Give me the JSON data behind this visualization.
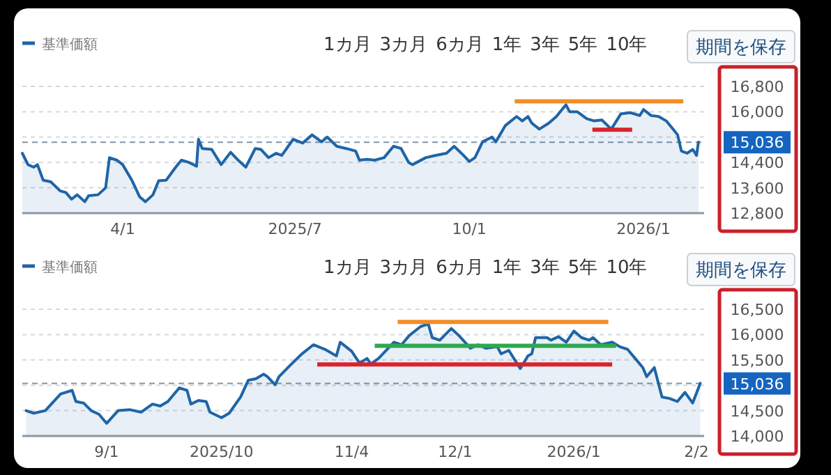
{
  "chart_data": [
    {
      "type": "area",
      "grid": "y",
      "legend": "top left",
      "xlim": [
        "2025-02-07",
        "2026-02-02"
      ],
      "ylim": [
        12800,
        16800
      ],
      "xticks": [
        {
          "value": "2025-04-01",
          "label": "4/1"
        },
        {
          "value": "2025-07-01",
          "label": "2025/7"
        },
        {
          "value": "2025-10-01",
          "label": "10/1"
        },
        {
          "value": "2026-01-01",
          "label": "2026/1"
        }
      ],
      "yticks": [
        {
          "value": 12800,
          "label": "12,800"
        },
        {
          "value": 13600,
          "label": "13,600"
        },
        {
          "value": 14400,
          "label": "14,400"
        },
        {
          "value": 15200,
          "label": null
        },
        {
          "value": 16000,
          "label": "16,000"
        },
        {
          "value": 16800,
          "label": "16,800"
        }
      ],
      "ref_lines": [
        {
          "axis": "y",
          "value": 15036,
          "label": "15,036",
          "line_style": "dashed"
        }
      ],
      "annotations": [
        "1カ月",
        "3カ月",
        "6カ月",
        "1年",
        "3年",
        "5年",
        "10年",
        "期間を保存"
      ],
      "series": [
        {
          "name": "基準価額",
          "type": "area",
          "color": "#1f65a6",
          "x": [
            "2025-02-07",
            "2025-02-10",
            "2025-02-13",
            "2025-02-15",
            "2025-02-18",
            "2025-02-22",
            "2025-02-27",
            "2025-03-02",
            "2025-03-05",
            "2025-03-08",
            "2025-03-12",
            "2025-03-14",
            "2025-03-19",
            "2025-03-23",
            "2025-03-25",
            "2025-03-29",
            "2025-04-01",
            "2025-04-06",
            "2025-04-10",
            "2025-04-13",
            "2025-04-17",
            "2025-04-20",
            "2025-04-24",
            "2025-04-29",
            "2025-05-02",
            "2025-05-06",
            "2025-05-10",
            "2025-05-11",
            "2025-05-13",
            "2025-05-18",
            "2025-05-23",
            "2025-05-28",
            "2025-06-01",
            "2025-06-05",
            "2025-06-10",
            "2025-06-13",
            "2025-06-17",
            "2025-06-21",
            "2025-06-24",
            "2025-06-30",
            "2025-07-05",
            "2025-07-10",
            "2025-07-15",
            "2025-07-18",
            "2025-07-23",
            "2025-07-28",
            "2025-08-02",
            "2025-08-04",
            "2025-08-08",
            "2025-08-12",
            "2025-08-17",
            "2025-08-22",
            "2025-08-26",
            "2025-08-30",
            "2025-09-01",
            "2025-09-08",
            "2025-09-13",
            "2025-09-19",
            "2025-09-23",
            "2025-09-28",
            "2025-10-01",
            "2025-10-04",
            "2025-10-08",
            "2025-10-13",
            "2025-10-15",
            "2025-10-20",
            "2025-10-26",
            "2025-10-29",
            "2025-11-01",
            "2025-11-03",
            "2025-11-07",
            "2025-11-12",
            "2025-11-16",
            "2025-11-21",
            "2025-11-23",
            "2025-11-27",
            "2025-12-02",
            "2025-12-06",
            "2025-12-10",
            "2025-12-15",
            "2025-12-20",
            "2025-12-25",
            "2025-12-30",
            "2026-01-01",
            "2026-01-05",
            "2026-01-09",
            "2026-01-13",
            "2026-01-17",
            "2026-01-19",
            "2026-01-21",
            "2026-01-24",
            "2026-01-27",
            "2026-01-29",
            "2026-01-30"
          ],
          "values": [
            14690,
            14330,
            14250,
            14330,
            13840,
            13790,
            13500,
            13450,
            13240,
            13380,
            13160,
            13350,
            13380,
            13600,
            14550,
            14470,
            14330,
            13820,
            13310,
            13160,
            13380,
            13820,
            13840,
            14250,
            14470,
            14400,
            14280,
            15130,
            14840,
            14810,
            14330,
            14720,
            14470,
            14250,
            14840,
            14810,
            14550,
            14690,
            14620,
            15130,
            15010,
            15270,
            15050,
            15200,
            14910,
            14840,
            14760,
            14470,
            14500,
            14470,
            14550,
            14910,
            14840,
            14400,
            14330,
            14550,
            14620,
            14690,
            14910,
            14620,
            14430,
            14550,
            15050,
            15200,
            15050,
            15560,
            15850,
            15710,
            15850,
            15640,
            15450,
            15640,
            15850,
            16220,
            16000,
            16000,
            15780,
            15710,
            15740,
            15450,
            15930,
            15970,
            15880,
            16070,
            15880,
            15850,
            15710,
            15420,
            15270,
            14760,
            14690,
            14810,
            14620,
            15040
          ]
        },
        {
          "type": "line",
          "color": "#f28c28",
          "x": [
            "2025-10-25",
            "2026-01-22"
          ],
          "values": [
            16330,
            16330
          ]
        },
        {
          "type": "line",
          "color": "#d9232d",
          "x": [
            "2025-12-05",
            "2025-12-26"
          ],
          "values": [
            15430,
            15430
          ]
        }
      ]
    },
    {
      "type": "area",
      "grid": "y",
      "legend": "top left",
      "xlim": [
        "2025-08-10",
        "2026-02-04"
      ],
      "ylim": [
        14000,
        16500
      ],
      "xticks": [
        {
          "value": "2025-09-01",
          "label": "9/1"
        },
        {
          "value": "2025-10-01",
          "label": "2025/10"
        },
        {
          "value": "2025-11-04",
          "label": "11/4"
        },
        {
          "value": "2025-12-01",
          "label": "12/1"
        },
        {
          "value": "2026-01-01",
          "label": "2026/1"
        },
        {
          "value": "2026-02-02",
          "label": "2/2"
        }
      ],
      "yticks": [
        {
          "value": 14000,
          "label": "14,000"
        },
        {
          "value": 14500,
          "label": "14,500"
        },
        {
          "value": 15000,
          "label": null
        },
        {
          "value": 15500,
          "label": "15,500"
        },
        {
          "value": 16000,
          "label": "16,000"
        },
        {
          "value": 16500,
          "label": "16,500"
        }
      ],
      "ref_lines": [
        {
          "axis": "y",
          "value": 15036,
          "label": "15,036",
          "line_style": "dashed"
        }
      ],
      "annotations": [
        "1カ月",
        "3カ月",
        "6カ月",
        "1年",
        "3年",
        "5年",
        "10年",
        "期間を保存"
      ],
      "series": [
        {
          "name": "基準価額",
          "type": "area",
          "color": "#1f65a6",
          "x": [
            "2025-08-11",
            "2025-08-13",
            "2025-08-16",
            "2025-08-20",
            "2025-08-23",
            "2025-08-24",
            "2025-08-26",
            "2025-08-28",
            "2025-08-30",
            "2025-09-01",
            "2025-09-04",
            "2025-09-07",
            "2025-09-10",
            "2025-09-13",
            "2025-09-15",
            "2025-09-17",
            "2025-09-20",
            "2025-09-22",
            "2025-09-23",
            "2025-09-25",
            "2025-09-27",
            "2025-09-28",
            "2025-10-01",
            "2025-10-03",
            "2025-10-06",
            "2025-10-08",
            "2025-10-10",
            "2025-10-12",
            "2025-10-13",
            "2025-10-15",
            "2025-10-16",
            "2025-10-19",
            "2025-10-22",
            "2025-10-25",
            "2025-10-28",
            "2025-10-31",
            "2025-11-01",
            "2025-11-04",
            "2025-11-06",
            "2025-11-08",
            "2025-11-09",
            "2025-11-11",
            "2025-11-15",
            "2025-11-17",
            "2025-11-19",
            "2025-11-22",
            "2025-11-24",
            "2025-11-25",
            "2025-11-27",
            "2025-11-30",
            "2025-12-02",
            "2025-12-05",
            "2025-12-07",
            "2025-12-09",
            "2025-12-12",
            "2025-12-13",
            "2025-12-15",
            "2025-12-18",
            "2025-12-20",
            "2025-12-21",
            "2025-12-22",
            "2025-12-25",
            "2025-12-26",
            "2025-12-28",
            "2025-12-30",
            "2026-01-01",
            "2026-01-03",
            "2026-01-05",
            "2026-01-06",
            "2026-01-08",
            "2026-01-11",
            "2026-01-13",
            "2026-01-15",
            "2026-01-17",
            "2026-01-19",
            "2026-01-20",
            "2026-01-22",
            "2026-01-24",
            "2026-01-26",
            "2026-01-28",
            "2026-01-30",
            "2026-02-01",
            "2026-02-03"
          ],
          "values": [
            14500,
            14450,
            14500,
            14830,
            14900,
            14680,
            14650,
            14500,
            14430,
            14250,
            14500,
            14520,
            14470,
            14630,
            14590,
            14680,
            14950,
            14900,
            14630,
            14700,
            14680,
            14470,
            14360,
            14450,
            14770,
            15100,
            15130,
            15220,
            15170,
            15010,
            15170,
            15400,
            15620,
            15800,
            15710,
            15580,
            15850,
            15670,
            15440,
            15530,
            15420,
            15530,
            15850,
            15800,
            15980,
            16160,
            16210,
            15940,
            15890,
            16120,
            15980,
            15730,
            15800,
            15730,
            15760,
            15620,
            15690,
            15330,
            15580,
            15620,
            15940,
            15940,
            15890,
            15960,
            15850,
            16070,
            15940,
            15890,
            15940,
            15800,
            15850,
            15760,
            15710,
            15530,
            15350,
            15170,
            15350,
            14770,
            14740,
            14680,
            14860,
            14650,
            15040
          ]
        },
        {
          "type": "line",
          "color": "#f28c28",
          "x": [
            "2025-11-16",
            "2026-01-10"
          ],
          "values": [
            16250,
            16250
          ]
        },
        {
          "type": "line",
          "color": "#2fa84f",
          "x": [
            "2025-11-10",
            "2026-01-12"
          ],
          "values": [
            15780,
            15780
          ]
        },
        {
          "type": "line",
          "color": "#d9232d",
          "x": [
            "2025-10-26",
            "2026-01-11"
          ],
          "values": [
            15410,
            15410
          ]
        }
      ]
    }
  ]
}
